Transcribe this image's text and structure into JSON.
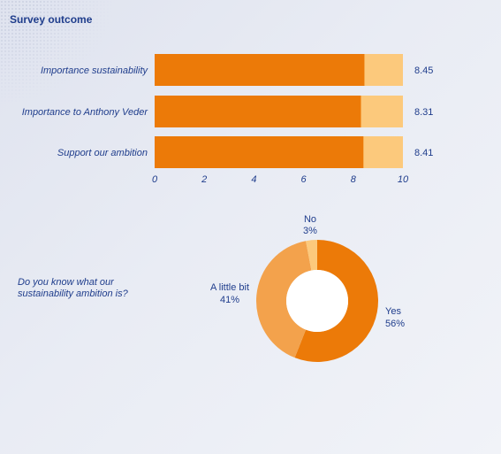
{
  "header": {
    "title": "Survey outcome"
  },
  "chart_data": [
    {
      "type": "bar",
      "orientation": "horizontal",
      "categories": [
        "Importance sustainability",
        "Importance to Anthony Veder",
        "Support our ambition"
      ],
      "values": [
        8.45,
        8.31,
        8.41
      ],
      "value_labels": [
        "8.45",
        "8.31",
        "8.41"
      ],
      "xlim": [
        0,
        10
      ],
      "xticks": [
        "0",
        "2",
        "4",
        "6",
        "8",
        "10"
      ],
      "colors": {
        "bar": "#ec7a08",
        "remainder": "#fcc97c"
      },
      "grid": false
    },
    {
      "type": "pie",
      "variant": "donut",
      "question": "Do you know what our sustainability ambition is?",
      "slices": [
        {
          "label": "Yes",
          "value": 56,
          "value_label": "56%",
          "color": "#ec7a08"
        },
        {
          "label": "A little bit",
          "value": 41,
          "value_label": "41%",
          "color": "#f3a24c"
        },
        {
          "label": "No",
          "value": 3,
          "value_label": "3%",
          "color": "#fcc97c"
        }
      ]
    }
  ]
}
